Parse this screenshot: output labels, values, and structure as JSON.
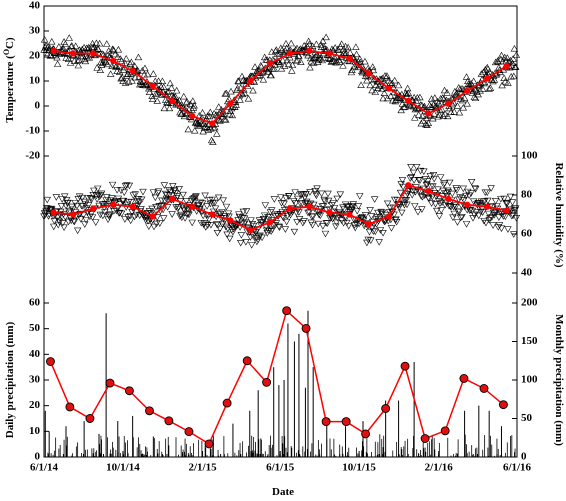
{
  "chart_data": [
    {
      "type": "scatter",
      "panel": "temperature",
      "ylabel_prefix": "Temperature (",
      "ylabel_unit_sup": "O",
      "ylabel_suffix": "C)",
      "ylim": [
        -20,
        40
      ],
      "yticks": [
        -20,
        -10,
        0,
        10,
        20,
        30,
        40
      ],
      "marker": "triangle-up",
      "monthly_series_color": "#ff0000",
      "monthly_mean": [
        {
          "date": "2014-06-01",
          "value": 22
        },
        {
          "date": "2014-07-01",
          "value": 21
        },
        {
          "date": "2014-08-01",
          "value": 21
        },
        {
          "date": "2014-09-01",
          "value": 18
        },
        {
          "date": "2014-10-01",
          "value": 14
        },
        {
          "date": "2014-11-01",
          "value": 8
        },
        {
          "date": "2014-12-01",
          "value": 2
        },
        {
          "date": "2015-01-01",
          "value": -4
        },
        {
          "date": "2015-02-01",
          "value": -7
        },
        {
          "date": "2015-03-01",
          "value": 1
        },
        {
          "date": "2015-04-01",
          "value": 10
        },
        {
          "date": "2015-05-01",
          "value": 17
        },
        {
          "date": "2015-06-01",
          "value": 21
        },
        {
          "date": "2015-07-01",
          "value": 22
        },
        {
          "date": "2015-08-01",
          "value": 21
        },
        {
          "date": "2015-09-01",
          "value": 19
        },
        {
          "date": "2015-10-01",
          "value": 13
        },
        {
          "date": "2015-11-01",
          "value": 7
        },
        {
          "date": "2015-12-01",
          "value": 2
        },
        {
          "date": "2016-01-01",
          "value": -3
        },
        {
          "date": "2016-02-01",
          "value": 1
        },
        {
          "date": "2016-03-01",
          "value": 6
        },
        {
          "date": "2016-04-01",
          "value": 11
        },
        {
          "date": "2016-05-01",
          "value": 16
        }
      ],
      "daily_noise_amplitude": 4.5
    },
    {
      "type": "scatter",
      "panel": "humidity",
      "ylabel": "Relative humidity (%)",
      "ylim": [
        20,
        100
      ],
      "yticks": [
        40,
        60,
        80,
        100
      ],
      "marker": "triangle-down",
      "monthly_series_color": "#ff0000",
      "monthly_mean": [
        {
          "date": "2014-06-01",
          "value": 71
        },
        {
          "date": "2014-07-01",
          "value": 70
        },
        {
          "date": "2014-08-01",
          "value": 73
        },
        {
          "date": "2014-09-01",
          "value": 75
        },
        {
          "date": "2014-10-01",
          "value": 74
        },
        {
          "date": "2014-11-01",
          "value": 69
        },
        {
          "date": "2014-12-01",
          "value": 78
        },
        {
          "date": "2015-01-01",
          "value": 74
        },
        {
          "date": "2015-02-01",
          "value": 70
        },
        {
          "date": "2015-03-01",
          "value": 67
        },
        {
          "date": "2015-04-01",
          "value": 62
        },
        {
          "date": "2015-05-01",
          "value": 66
        },
        {
          "date": "2015-06-01",
          "value": 73
        },
        {
          "date": "2015-07-01",
          "value": 74
        },
        {
          "date": "2015-08-01",
          "value": 71
        },
        {
          "date": "2015-09-01",
          "value": 70
        },
        {
          "date": "2015-10-01",
          "value": 65
        },
        {
          "date": "2015-11-01",
          "value": 69
        },
        {
          "date": "2015-12-01",
          "value": 85
        },
        {
          "date": "2016-01-01",
          "value": 82
        },
        {
          "date": "2016-02-01",
          "value": 78
        },
        {
          "date": "2016-03-01",
          "value": 75
        },
        {
          "date": "2016-04-01",
          "value": 74
        },
        {
          "date": "2016-05-01",
          "value": 72
        }
      ],
      "daily_noise_amplitude": 8
    },
    {
      "type": "bar",
      "panel": "precipitation",
      "ylabel": "Daily precipitation (mm)",
      "ylim": [
        0,
        60
      ],
      "yticks": [
        0,
        10,
        20,
        30,
        40,
        50,
        60
      ],
      "bars_note": "daily precipitation",
      "daily_large_events": [
        {
          "date": "2014-06-03",
          "value": 18
        },
        {
          "date": "2014-06-09",
          "value": 10
        },
        {
          "date": "2014-07-05",
          "value": 12
        },
        {
          "date": "2014-08-02",
          "value": 14
        },
        {
          "date": "2014-08-25",
          "value": 9
        },
        {
          "date": "2014-09-05",
          "value": 56
        },
        {
          "date": "2014-09-23",
          "value": 14
        },
        {
          "date": "2014-10-16",
          "value": 16
        },
        {
          "date": "2014-11-17",
          "value": 8
        },
        {
          "date": "2015-03-20",
          "value": 13
        },
        {
          "date": "2015-04-15",
          "value": 18
        },
        {
          "date": "2015-04-28",
          "value": 26
        },
        {
          "date": "2015-05-22",
          "value": 35
        },
        {
          "date": "2015-05-30",
          "value": 28
        },
        {
          "date": "2015-06-07",
          "value": 30
        },
        {
          "date": "2015-06-13",
          "value": 52
        },
        {
          "date": "2015-06-23",
          "value": 45
        },
        {
          "date": "2015-06-30",
          "value": 48
        },
        {
          "date": "2015-07-10",
          "value": 27
        },
        {
          "date": "2015-07-14",
          "value": 57
        },
        {
          "date": "2015-07-22",
          "value": 35
        },
        {
          "date": "2015-08-12",
          "value": 13
        },
        {
          "date": "2015-09-10",
          "value": 12
        },
        {
          "date": "2015-10-07",
          "value": 14
        },
        {
          "date": "2015-11-11",
          "value": 22
        },
        {
          "date": "2015-12-01",
          "value": 22
        },
        {
          "date": "2015-12-25",
          "value": 37
        },
        {
          "date": "2016-03-12",
          "value": 18
        },
        {
          "date": "2016-04-03",
          "value": 20
        },
        {
          "date": "2016-04-19",
          "value": 18
        },
        {
          "date": "2016-05-08",
          "value": 12
        }
      ]
    },
    {
      "type": "line",
      "panel": "monthly-precipitation",
      "ylabel": "Monthly precipitation (mm)",
      "ylim": [
        0,
        200
      ],
      "yticks": [
        0,
        50,
        100,
        150,
        200
      ],
      "color": "#ff0000",
      "marker_fill": "#e01010",
      "points": [
        {
          "date": "2014-06-01",
          "value": 124
        },
        {
          "date": "2014-07-01",
          "value": 65
        },
        {
          "date": "2014-08-01",
          "value": 50
        },
        {
          "date": "2014-09-01",
          "value": 96
        },
        {
          "date": "2014-10-01",
          "value": 86
        },
        {
          "date": "2014-11-01",
          "value": 60
        },
        {
          "date": "2014-12-01",
          "value": 47
        },
        {
          "date": "2015-01-01",
          "value": 33
        },
        {
          "date": "2015-02-01",
          "value": 17
        },
        {
          "date": "2015-03-01",
          "value": 70
        },
        {
          "date": "2015-04-01",
          "value": 125
        },
        {
          "date": "2015-05-01",
          "value": 97
        },
        {
          "date": "2015-06-01",
          "value": 190
        },
        {
          "date": "2015-07-01",
          "value": 167
        },
        {
          "date": "2015-08-01",
          "value": 46
        },
        {
          "date": "2015-09-01",
          "value": 46
        },
        {
          "date": "2015-10-01",
          "value": 30
        },
        {
          "date": "2015-11-01",
          "value": 63
        },
        {
          "date": "2015-12-01",
          "value": 118
        },
        {
          "date": "2016-01-01",
          "value": 24
        },
        {
          "date": "2016-02-01",
          "value": 34
        },
        {
          "date": "2016-03-01",
          "value": 102
        },
        {
          "date": "2016-04-01",
          "value": 89
        },
        {
          "date": "2016-05-01",
          "value": 68
        }
      ]
    }
  ],
  "x_axis": {
    "title": "Date",
    "domain": [
      "2014-06-01",
      "2016-06-01"
    ],
    "ticks": [
      {
        "date": "2014-06-01",
        "label": "6/1/14"
      },
      {
        "date": "2014-10-01",
        "label": "10/1/14"
      },
      {
        "date": "2015-02-01",
        "label": "2/1/15"
      },
      {
        "date": "2015-06-01",
        "label": "6/1/15"
      },
      {
        "date": "2015-10-01",
        "label": "10/1/15"
      },
      {
        "date": "2016-02-01",
        "label": "2/1/16"
      },
      {
        "date": "2016-06-01",
        "label": "6/1/16"
      }
    ],
    "minor_ticks_monthly": true
  },
  "colors": {
    "axis": "#000000",
    "monthly": "#ff0000",
    "monthly_marker": "#e01010"
  }
}
